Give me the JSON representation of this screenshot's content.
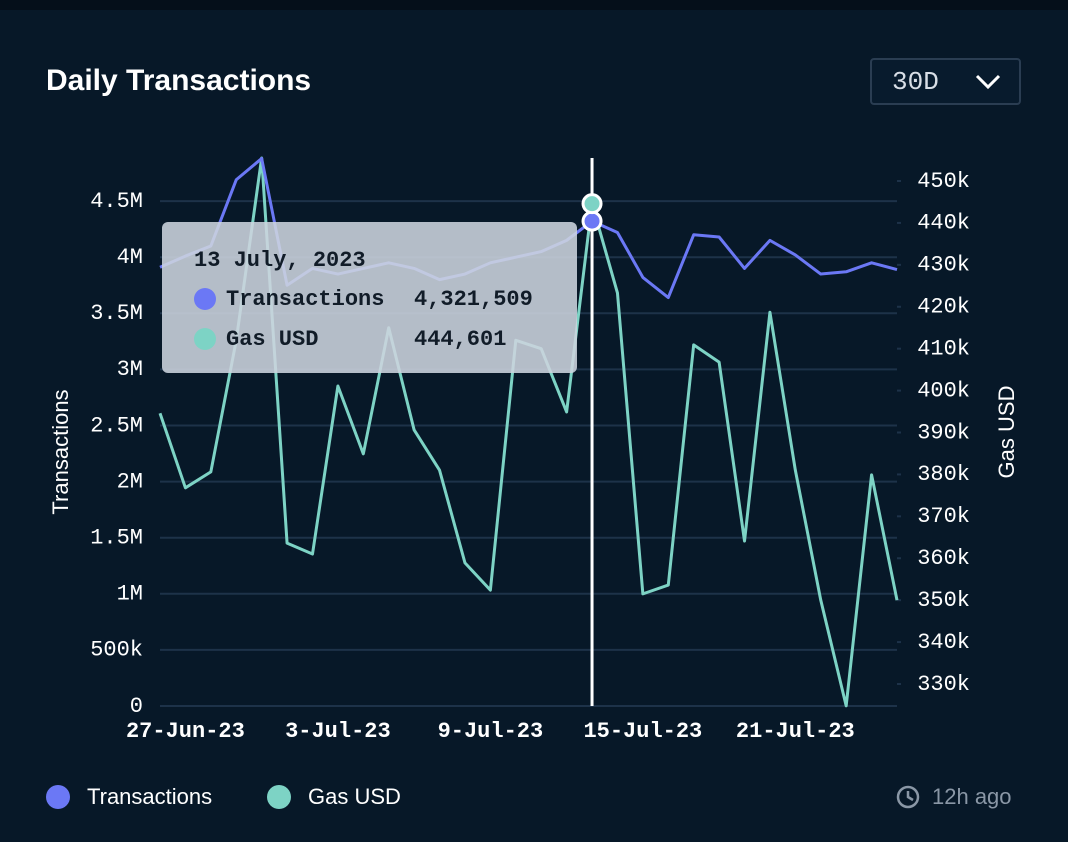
{
  "chart_data": {
    "type": "line",
    "title": "Daily Transactions",
    "categories": [
      null,
      "27-Jun-23",
      null,
      null,
      null,
      null,
      null,
      "3-Jul-23",
      null,
      null,
      null,
      null,
      null,
      "9-Jul-23",
      null,
      null,
      null,
      null,
      null,
      "15-Jul-23",
      null,
      null,
      null,
      null,
      null,
      "21-Jul-23",
      null,
      null,
      null,
      null
    ],
    "y_label": "Transactions",
    "y2_label": "Gas USD",
    "ylim": [
      0,
      5000000
    ],
    "yticks": [
      0,
      {
        "value": 500000,
        "label": "500k"
      },
      {
        "value": 1000000,
        "label": "1M"
      },
      {
        "value": 1500000,
        "label": "1.5M"
      },
      {
        "value": 2000000,
        "label": "2M"
      },
      {
        "value": 2500000,
        "label": "2.5M"
      },
      {
        "value": 3000000,
        "label": "3M"
      },
      {
        "value": 3500000,
        "label": "3.5M"
      },
      {
        "value": 4000000,
        "label": "4M"
      },
      {
        "value": 4500000,
        "label": "4.5M"
      }
    ],
    "y2lim": [
      324750,
      458590
    ],
    "y2ticks": [
      {
        "value": 330000,
        "label": "330k"
      },
      {
        "value": 340000,
        "label": "340k"
      },
      {
        "value": 350000,
        "label": "350k"
      },
      {
        "value": 360000,
        "label": "360k"
      },
      {
        "value": 370000,
        "label": "370k"
      },
      {
        "value": 380000,
        "label": "380k"
      },
      {
        "value": 390000,
        "label": "390k"
      },
      {
        "value": 400000,
        "label": "400k"
      },
      {
        "value": 410000,
        "label": "410k"
      },
      {
        "value": 420000,
        "label": "420k"
      },
      {
        "value": 430000,
        "label": "430k"
      },
      {
        "value": 440000,
        "label": "440k"
      },
      {
        "value": 450000,
        "label": "450k"
      }
    ],
    "grid": true,
    "tooltip": "13 July, 2023",
    "series": [
      {
        "name": "Transactions",
        "color": "#6b78f5",
        "values": [
          3910000,
          4010000,
          4100000,
          4690000,
          4880000,
          3750000,
          3900000,
          3850000,
          3900000,
          3950000,
          3900000,
          3800000,
          3850000,
          3950000,
          4000000,
          4050000,
          4150000,
          4321509,
          4220000,
          3820000,
          3640000,
          4200000,
          4180000,
          3900000,
          4150000,
          4020000,
          3850000,
          3870000,
          3950000,
          3890000
        ],
        "value_labels": [
          null,
          null,
          null,
          null,
          null,
          null,
          null,
          null,
          null,
          null,
          null,
          null,
          null,
          null,
          null,
          null,
          null,
          "4,321,509",
          null,
          null,
          null,
          null,
          null,
          null,
          null,
          null,
          null,
          null,
          null,
          null
        ]
      },
      {
        "name": "Gas USD",
        "color": "#7dd3c5",
        "axis": "y2",
        "values": [
          394600,
          376800,
          380600,
          412000,
          455500,
          363600,
          361000,
          401100,
          384900,
          415000,
          390600,
          381000,
          358900,
          352400,
          412000,
          410000,
          394900,
          444601,
          423300,
          351500,
          353600,
          410900,
          406800,
          364100,
          418700,
          381000,
          350000,
          324800,
          379900,
          350000
        ],
        "value_labels": [
          null,
          null,
          null,
          null,
          null,
          null,
          null,
          null,
          null,
          null,
          null,
          null,
          null,
          null,
          null,
          null,
          null,
          "444,601",
          null,
          null,
          null,
          null,
          null,
          null,
          null,
          null,
          null,
          null,
          null,
          null
        ]
      }
    ]
  },
  "header": {
    "range": "30D"
  },
  "footer": {
    "updated": "12h ago"
  }
}
